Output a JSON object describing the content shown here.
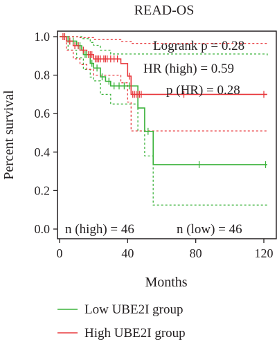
{
  "chart_data": {
    "type": "line",
    "title": "READ-OS",
    "xlabel": "Months",
    "ylabel": "Percent survival",
    "xlim": [
      0,
      125
    ],
    "ylim": [
      0,
      1.04
    ],
    "x_ticks": [
      0,
      40,
      80,
      120
    ],
    "y_ticks": [
      0.0,
      0.2,
      0.4,
      0.6,
      0.8,
      1.0
    ],
    "x_tick_labels": [
      "0",
      "40",
      "80",
      "120"
    ],
    "y_tick_labels": [
      "0.0",
      "0.2",
      "0.4",
      "0.6",
      "0.8",
      "1.0"
    ],
    "grid": false,
    "legend_position": "bottom",
    "annotations": {
      "logrank": "Logrank p = 0.28",
      "hr": "HR (high) = 0.59",
      "p_hr": "p (HR) = 0.28",
      "n_high": "n (high) = 46",
      "n_low": "n (low) = 46"
    },
    "series": [
      {
        "name": "Low UBE2I group",
        "color": "#3cb33c",
        "style": "solid",
        "steps": [
          [
            0,
            1.0
          ],
          [
            5,
            0.977
          ],
          [
            10,
            0.953
          ],
          [
            13,
            0.93
          ],
          [
            14,
            0.907
          ],
          [
            18,
            0.861
          ],
          [
            20,
            0.837
          ],
          [
            24,
            0.791
          ],
          [
            27,
            0.768
          ],
          [
            30,
            0.744
          ],
          [
            46,
            0.629
          ],
          [
            50,
            0.508
          ],
          [
            55,
            0.335
          ],
          [
            122,
            0.335
          ]
        ],
        "censors": [
          [
            3,
            1.0
          ],
          [
            6,
            0.977
          ],
          [
            8,
            0.977
          ],
          [
            11,
            0.953
          ],
          [
            12,
            0.953
          ],
          [
            15,
            0.907
          ],
          [
            16,
            0.907
          ],
          [
            19,
            0.861
          ],
          [
            22,
            0.837
          ],
          [
            25,
            0.791
          ],
          [
            29,
            0.768
          ],
          [
            32,
            0.744
          ],
          [
            35,
            0.744
          ],
          [
            38,
            0.744
          ],
          [
            41,
            0.744
          ],
          [
            52,
            0.508
          ],
          [
            82,
            0.335
          ],
          [
            121,
            0.335
          ]
        ]
      },
      {
        "name": "High UBE2I group",
        "color": "#e8383d",
        "style": "solid",
        "steps": [
          [
            0,
            1.0
          ],
          [
            4,
            0.977
          ],
          [
            8,
            0.953
          ],
          [
            12,
            0.93
          ],
          [
            16,
            0.907
          ],
          [
            20,
            0.884
          ],
          [
            36,
            0.86
          ],
          [
            40,
            0.795
          ],
          [
            42,
            0.7
          ],
          [
            122,
            0.7
          ]
        ],
        "censors": [
          [
            2,
            1.0
          ],
          [
            3,
            1.0
          ],
          [
            6,
            0.977
          ],
          [
            9,
            0.953
          ],
          [
            11,
            0.953
          ],
          [
            14,
            0.93
          ],
          [
            17,
            0.907
          ],
          [
            18,
            0.907
          ],
          [
            19,
            0.907
          ],
          [
            21,
            0.884
          ],
          [
            22,
            0.884
          ],
          [
            23,
            0.884
          ],
          [
            24,
            0.884
          ],
          [
            26,
            0.884
          ],
          [
            27,
            0.884
          ],
          [
            28,
            0.884
          ],
          [
            30,
            0.884
          ],
          [
            32,
            0.884
          ],
          [
            34,
            0.884
          ],
          [
            41,
            0.795
          ],
          [
            43,
            0.7
          ],
          [
            44,
            0.7
          ],
          [
            45,
            0.7
          ],
          [
            46,
            0.7
          ],
          [
            47,
            0.7
          ],
          [
            48,
            0.7
          ],
          [
            73,
            0.7
          ],
          [
            120,
            0.7
          ]
        ]
      }
    ],
    "ci_bands": [
      {
        "series": "Low UBE2I group",
        "color": "#3cb33c",
        "upper": [
          [
            0,
            1.0
          ],
          [
            5,
            1.0
          ],
          [
            13,
            0.99
          ],
          [
            18,
            0.97
          ],
          [
            20,
            0.955
          ],
          [
            24,
            0.93
          ],
          [
            30,
            0.91
          ],
          [
            122,
            0.9
          ]
        ],
        "lower": [
          [
            0,
            1.0
          ],
          [
            5,
            0.93
          ],
          [
            10,
            0.89
          ],
          [
            14,
            0.83
          ],
          [
            18,
            0.79
          ],
          [
            20,
            0.77
          ],
          [
            24,
            0.7
          ],
          [
            30,
            0.65
          ],
          [
            46,
            0.51
          ],
          [
            50,
            0.38
          ],
          [
            55,
            0.125
          ],
          [
            122,
            0.125
          ]
        ]
      },
      {
        "series": "High UBE2I group",
        "color": "#e8383d",
        "upper": [
          [
            0,
            1.0
          ],
          [
            8,
            1.0
          ],
          [
            12,
            0.995
          ],
          [
            20,
            0.985
          ],
          [
            36,
            0.975
          ],
          [
            42,
            0.965
          ],
          [
            122,
            0.965
          ]
        ],
        "lower": [
          [
            0,
            1.0
          ],
          [
            4,
            0.93
          ],
          [
            8,
            0.885
          ],
          [
            12,
            0.855
          ],
          [
            16,
            0.83
          ],
          [
            20,
            0.8
          ],
          [
            36,
            0.76
          ],
          [
            40,
            0.66
          ],
          [
            42,
            0.51
          ],
          [
            122,
            0.51
          ]
        ]
      }
    ]
  }
}
